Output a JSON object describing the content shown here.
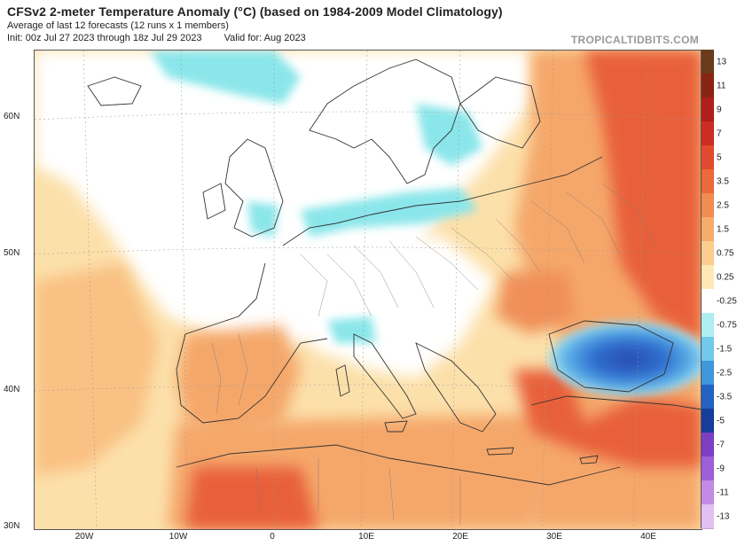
{
  "header": {
    "title": "CFSv2 2-meter Temperature Anomaly (°C) (based on 1984-2009 Model Climatology)",
    "subtitle": "Average of last 12 forecasts (12 runs x 1 members)",
    "init": "Init: 00z Jul 27 2023 through 18z Jul 29 2023",
    "valid": "Valid for: Aug 2023",
    "credit": "TROPICALTIDBITS.COM"
  },
  "axes": {
    "lat_labels": [
      "60N",
      "50N",
      "40N",
      "30N"
    ],
    "lon_labels": [
      "20W",
      "10W",
      "0",
      "10E",
      "20E",
      "30E",
      "40E"
    ]
  },
  "colorbar": {
    "labels": [
      "13",
      "11",
      "9",
      "7",
      "5",
      "3.5",
      "2.5",
      "1.5",
      "0.75",
      "0.25",
      "-0.25",
      "-0.75",
      "-1.5",
      "-2.5",
      "-3.5",
      "-5",
      "-7",
      "-9",
      "-11",
      "-13"
    ],
    "colors": [
      "#6b3b1c",
      "#8a2412",
      "#b0201a",
      "#cc2d22",
      "#e04a2e",
      "#ea6a3c",
      "#f28c50",
      "#f7ab6a",
      "#fbcd8e",
      "#fde8b6",
      "#ffffff",
      "#aeeef0",
      "#72c9ec",
      "#3f97dc",
      "#2363bf",
      "#173d9a",
      "#7d3ec4",
      "#9f5fd8",
      "#c38be6",
      "#e3bff2"
    ]
  },
  "map_colors": {
    "land_border": "#444444",
    "warm_base": "#fbd79c",
    "warm_mid": "#f5a76a",
    "hot": "#e8603a",
    "very_hot": "#d8402a",
    "cool": "#8ae6ea",
    "cold": "#3a86d8",
    "coldest": "#2a4cb0",
    "neutral": "#ffffff"
  }
}
